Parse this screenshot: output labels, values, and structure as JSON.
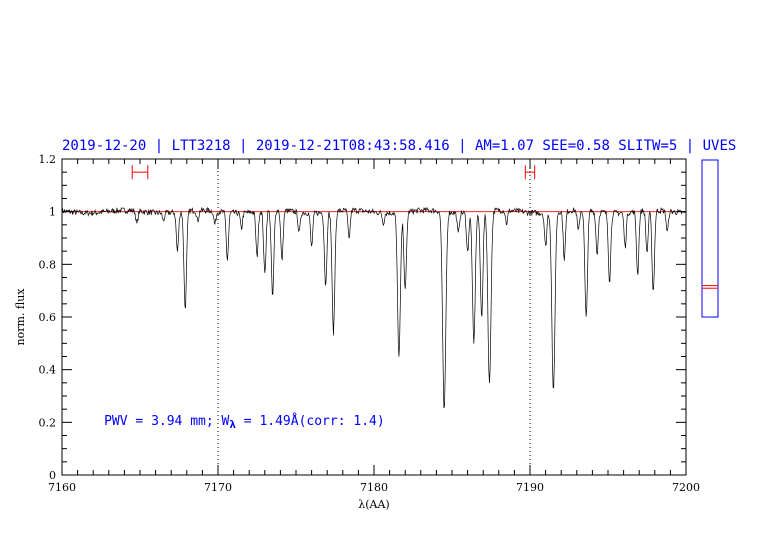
{
  "chart_data": {
    "type": "line",
    "title": "2019-12-20 | LTT3218 | 2019-12-21T08:43:58.416 | AM=1.07  SEE=0.58  SLITW=5 | UVES",
    "xlabel": "λ(AA)",
    "ylabel": "norm. flux",
    "xlim": [
      7160,
      7200
    ],
    "ylim": [
      0,
      1.2
    ],
    "x_ticks": [
      7160,
      7170,
      7180,
      7190,
      7200
    ],
    "x_tick_labels": [
      "7160",
      "7170",
      "7180",
      "7190",
      "7200"
    ],
    "y_ticks": [
      0,
      0.2,
      0.4,
      0.6,
      0.8,
      1,
      1.2
    ],
    "y_tick_labels": [
      "0",
      "0.2",
      "0.4",
      "0.6",
      "0.8",
      "1",
      "1.2"
    ],
    "vertical_reference_lines": [
      7170,
      7190
    ],
    "continuum_level": 1.0,
    "continuum_ranges": [
      [
        7164.5,
        7165.5
      ],
      [
        7189.7,
        7190.3
      ]
    ],
    "continuum_marker_y": 1.15,
    "annotation": {
      "pwv_text": "PWV = 3.94  mm; W",
      "lambda_symbol": "λ",
      "ew_text": " = 1.49Å(corr: 1.4)",
      "x": 7162.7,
      "y": 0.19
    },
    "absorption_lines": [
      {
        "x": 7164.8,
        "depth": 0.05
      },
      {
        "x": 7166.5,
        "depth": 0.03
      },
      {
        "x": 7167.4,
        "depth": 0.15
      },
      {
        "x": 7167.9,
        "depth": 0.37
      },
      {
        "x": 7168.7,
        "depth": 0.04
      },
      {
        "x": 7169.8,
        "depth": 0.05
      },
      {
        "x": 7170.6,
        "depth": 0.18
      },
      {
        "x": 7171.5,
        "depth": 0.06
      },
      {
        "x": 7172.5,
        "depth": 0.17
      },
      {
        "x": 7173.0,
        "depth": 0.24
      },
      {
        "x": 7173.5,
        "depth": 0.33
      },
      {
        "x": 7174.1,
        "depth": 0.19
      },
      {
        "x": 7175.2,
        "depth": 0.08
      },
      {
        "x": 7176.0,
        "depth": 0.13
      },
      {
        "x": 7176.9,
        "depth": 0.28
      },
      {
        "x": 7177.4,
        "depth": 0.46
      },
      {
        "x": 7178.4,
        "depth": 0.11
      },
      {
        "x": 7180.6,
        "depth": 0.04
      },
      {
        "x": 7181.6,
        "depth": 0.55
      },
      {
        "x": 7182.0,
        "depth": 0.3
      },
      {
        "x": 7184.5,
        "depth": 0.76
      },
      {
        "x": 7185.4,
        "depth": 0.08
      },
      {
        "x": 7186.0,
        "depth": 0.15
      },
      {
        "x": 7186.4,
        "depth": 0.5
      },
      {
        "x": 7186.9,
        "depth": 0.4
      },
      {
        "x": 7187.4,
        "depth": 0.66
      },
      {
        "x": 7188.5,
        "depth": 0.05
      },
      {
        "x": 7191.0,
        "depth": 0.13
      },
      {
        "x": 7191.5,
        "depth": 0.69
      },
      {
        "x": 7192.2,
        "depth": 0.18
      },
      {
        "x": 7193.1,
        "depth": 0.08
      },
      {
        "x": 7193.6,
        "depth": 0.41
      },
      {
        "x": 7194.3,
        "depth": 0.16
      },
      {
        "x": 7195.1,
        "depth": 0.26
      },
      {
        "x": 7196.1,
        "depth": 0.13
      },
      {
        "x": 7196.9,
        "depth": 0.24
      },
      {
        "x": 7197.5,
        "depth": 0.16
      },
      {
        "x": 7197.9,
        "depth": 0.31
      },
      {
        "x": 7198.8,
        "depth": 0.08
      }
    ],
    "side_indicator": {
      "ylim": [
        0.6,
        1.2
      ],
      "marks": [
        0.71,
        0.72
      ]
    },
    "colors": {
      "title": "#0000ff",
      "spectrum": "#000000",
      "continuum": "#ff0000",
      "markers": "#ff0000",
      "side_box": "#0000ff",
      "annotation": "#0000ff"
    }
  }
}
